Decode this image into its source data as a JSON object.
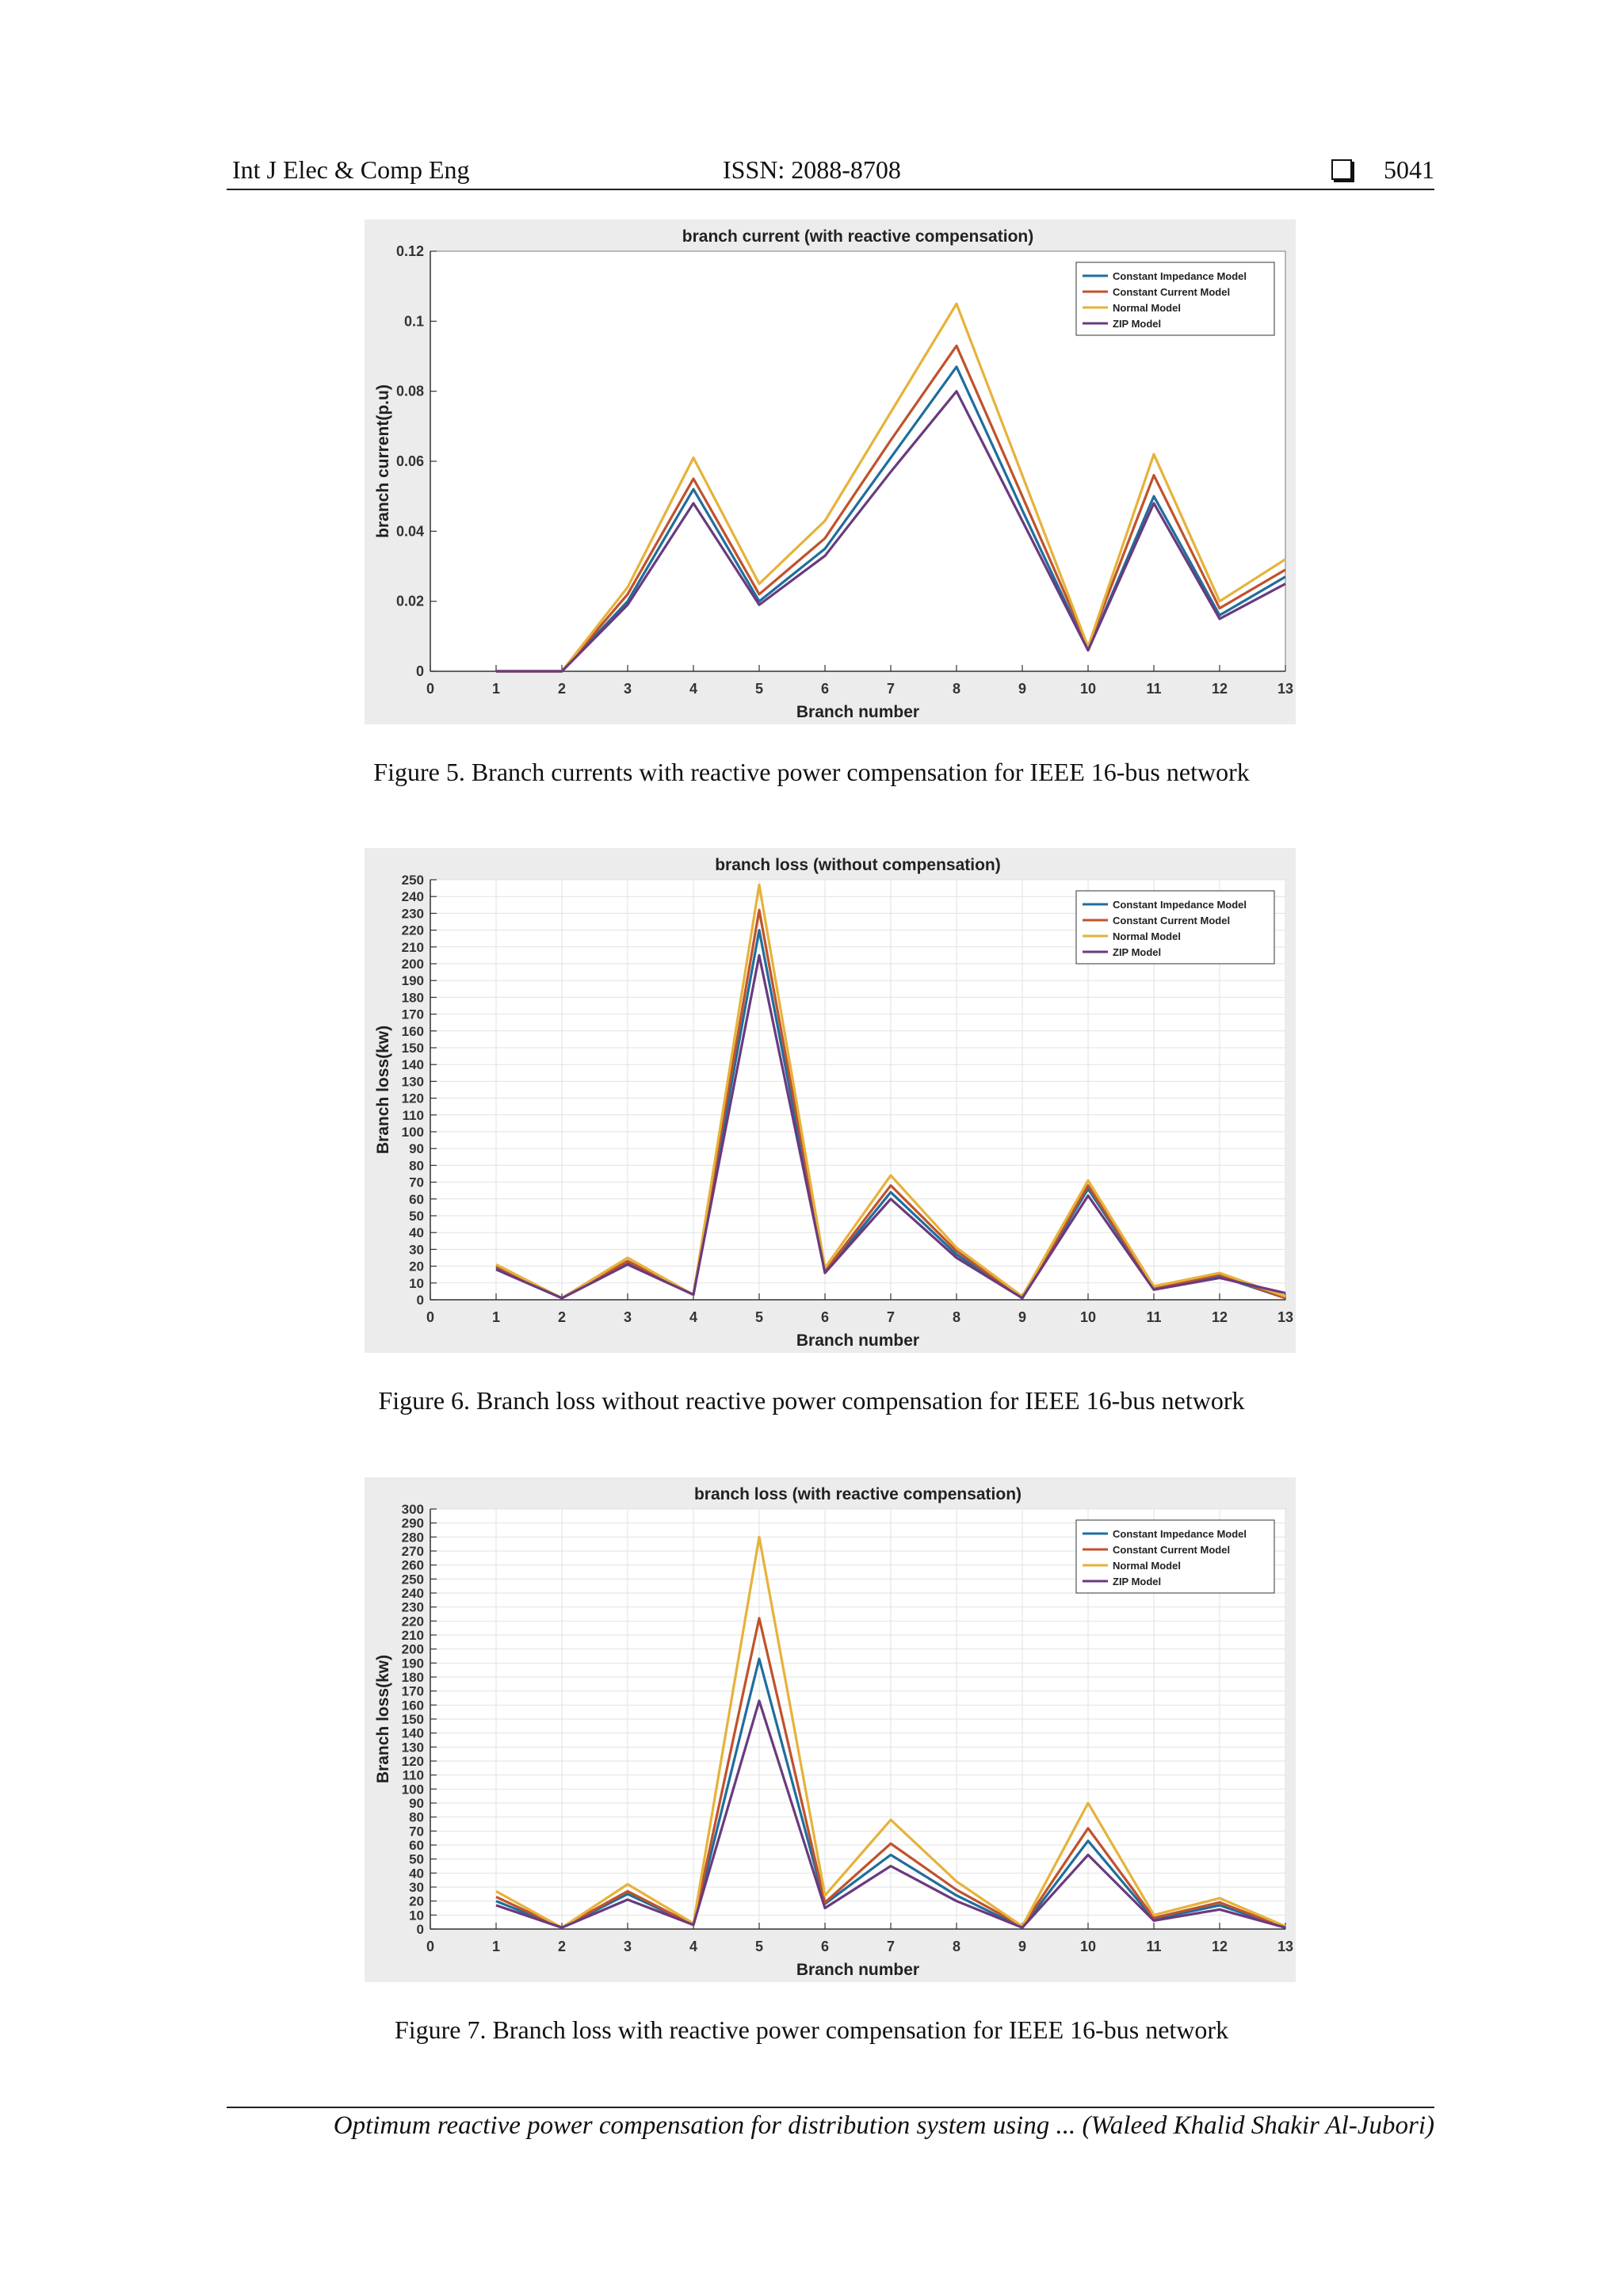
{
  "header": {
    "journal": "Int J Elec & Comp Eng",
    "issn": "ISSN: 2088-8708",
    "page": "5041"
  },
  "footer": {
    "text": "Optimum reactive power compensation for distribution system using ... (Waleed Khalid Shakir Al-Jubori)"
  },
  "figures": [
    {
      "caption": "Figure 5. Branch currents with reactive power compensation for IEEE 16-bus network"
    },
    {
      "caption": "Figure 6. Branch loss without reactive power compensation for IEEE 16-bus network"
    },
    {
      "caption": "Figure 7. Branch loss with reactive power compensation for IEEE 16-bus network"
    }
  ],
  "colors": {
    "constant_impedance": "#1f6e9c",
    "constant_current": "#c0522c",
    "normal": "#e6b23a",
    "zip": "#6a3a7e"
  },
  "chart_data": [
    {
      "type": "line",
      "title": "branch current (with reactive compensation)",
      "xlabel": "Branch number",
      "ylabel": "branch current(p.u)",
      "xlim": [
        0,
        13
      ],
      "ylim": [
        0,
        0.12
      ],
      "xticks": [
        "0",
        "1",
        "2",
        "3",
        "4",
        "5",
        "6",
        "7",
        "8",
        "9",
        "10",
        "11",
        "12",
        "13"
      ],
      "yticks": [
        "0",
        "0.02",
        "0.04",
        "0.06",
        "0.08",
        "0.1",
        "0.12"
      ],
      "legend_position": "top-right",
      "grid": false,
      "x": [
        1,
        2,
        3,
        4,
        5,
        6,
        7,
        8,
        9,
        10,
        11,
        12,
        13
      ],
      "series": [
        {
          "name": "Constant Impedance Model",
          "color": "#1f6e9c",
          "values": [
            0,
            0,
            0.02,
            0.052,
            0.02,
            0.035,
            0.061,
            0.087,
            0.046,
            0.006,
            0.05,
            0.016,
            0.027
          ]
        },
        {
          "name": "Constant Current Model",
          "color": "#c0522c",
          "values": [
            0,
            0,
            0.022,
            0.055,
            0.022,
            0.038,
            0.066,
            0.093,
            0.05,
            0.007,
            0.056,
            0.018,
            0.029
          ]
        },
        {
          "name": "Normal Model",
          "color": "#e6b23a",
          "values": [
            0,
            0,
            0.024,
            0.061,
            0.025,
            0.043,
            0.074,
            0.105,
            0.056,
            0.007,
            0.062,
            0.02,
            0.032
          ]
        },
        {
          "name": "ZIP Model",
          "color": "#6a3a7e",
          "values": [
            0,
            0,
            0.019,
            0.048,
            0.019,
            0.033,
            0.057,
            0.08,
            0.043,
            0.006,
            0.048,
            0.015,
            0.025
          ]
        }
      ]
    },
    {
      "type": "line",
      "title": "branch loss (without compensation)",
      "xlabel": "Branch number",
      "ylabel": "Branch loss(kw)",
      "xlim": [
        0,
        13
      ],
      "ylim": [
        0,
        250
      ],
      "xticks": [
        "0",
        "1",
        "2",
        "3",
        "4",
        "5",
        "6",
        "7",
        "8",
        "9",
        "10",
        "11",
        "12",
        "13"
      ],
      "yticks": [
        "0",
        "10",
        "20",
        "30",
        "40",
        "50",
        "60",
        "70",
        "80",
        "90",
        "100",
        "110",
        "120",
        "130",
        "140",
        "150",
        "160",
        "170",
        "180",
        "190",
        "200",
        "210",
        "220",
        "230",
        "240",
        "250"
      ],
      "legend_position": "top-right",
      "grid": true,
      "x": [
        1,
        2,
        3,
        4,
        5,
        6,
        7,
        8,
        9,
        10,
        11,
        12,
        13
      ],
      "series": [
        {
          "name": "Constant Impedance Model",
          "color": "#1f6e9c",
          "values": [
            19,
            1,
            22,
            3,
            220,
            16,
            64,
            27,
            1,
            66,
            7,
            14,
            1
          ]
        },
        {
          "name": "Constant Current Model",
          "color": "#c0522c",
          "values": [
            20,
            1,
            23,
            3,
            232,
            17,
            68,
            29,
            1,
            68,
            7,
            15,
            1
          ]
        },
        {
          "name": "Normal Model",
          "color": "#e6b23a",
          "values": [
            21,
            1,
            25,
            3,
            247,
            19,
            74,
            31,
            2,
            71,
            8,
            16,
            2
          ]
        },
        {
          "name": "ZIP Model",
          "color": "#6a3a7e",
          "values": [
            18,
            1,
            21,
            3,
            205,
            16,
            60,
            25,
            1,
            62,
            6,
            13,
            4
          ]
        }
      ]
    },
    {
      "type": "line",
      "title": "branch loss (with reactive compensation)",
      "xlabel": "Branch number",
      "ylabel": "Branch loss(kw)",
      "xlim": [
        0,
        13
      ],
      "ylim": [
        0,
        300
      ],
      "xticks": [
        "0",
        "1",
        "2",
        "3",
        "4",
        "5",
        "6",
        "7",
        "8",
        "9",
        "10",
        "11",
        "12",
        "13"
      ],
      "yticks": [
        "0",
        "10",
        "20",
        "30",
        "40",
        "50",
        "60",
        "70",
        "80",
        "90",
        "100",
        "110",
        "120",
        "130",
        "140",
        "150",
        "160",
        "170",
        "180",
        "190",
        "200",
        "210",
        "220",
        "230",
        "240",
        "250",
        "260",
        "270",
        "280",
        "290",
        "300"
      ],
      "legend_position": "top-right",
      "grid": true,
      "x": [
        1,
        2,
        3,
        4,
        5,
        6,
        7,
        8,
        9,
        10,
        11,
        12,
        13
      ],
      "series": [
        {
          "name": "Constant Impedance Model",
          "color": "#1f6e9c",
          "values": [
            20,
            1,
            25,
            3,
            193,
            18,
            53,
            24,
            1,
            63,
            7,
            17,
            1
          ]
        },
        {
          "name": "Constant Current Model",
          "color": "#c0522c",
          "values": [
            23,
            1,
            27,
            3,
            222,
            19,
            61,
            28,
            2,
            72,
            8,
            19,
            1
          ]
        },
        {
          "name": "Normal Model",
          "color": "#e6b23a",
          "values": [
            27,
            1,
            32,
            4,
            280,
            24,
            78,
            34,
            2,
            90,
            10,
            22,
            2
          ]
        },
        {
          "name": "ZIP Model",
          "color": "#6a3a7e",
          "values": [
            17,
            1,
            21,
            3,
            163,
            15,
            45,
            20,
            1,
            53,
            6,
            14,
            1
          ]
        }
      ]
    }
  ]
}
